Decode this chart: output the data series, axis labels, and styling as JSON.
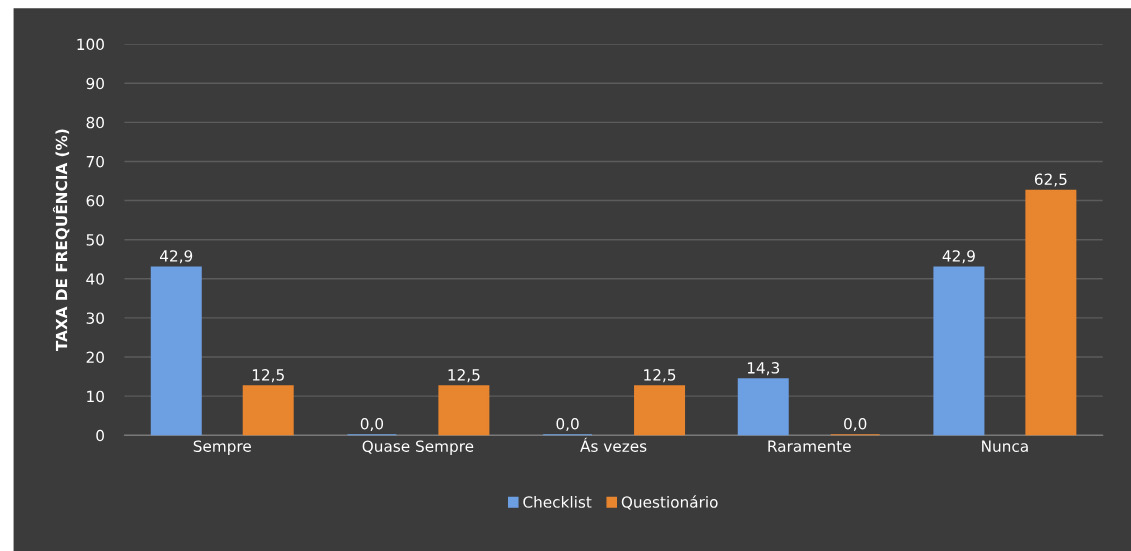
{
  "chart_data": {
    "type": "bar",
    "ylabel": "TAXA DE FREQUÊNCIA (%)",
    "categories": [
      "Sempre",
      "Quase Sempre",
      "Ás vezes",
      "Raramente",
      "Nunca"
    ],
    "series": [
      {
        "name": "Checklist",
        "color": "#6d9fe3",
        "values": [
          42.9,
          0.0,
          0.0,
          14.3,
          42.9
        ],
        "value_labels": [
          "42,9",
          "0,0",
          "0,0",
          "14,3",
          "42,9"
        ]
      },
      {
        "name": "Questionário",
        "color": "#e8852f",
        "values": [
          12.5,
          12.5,
          12.5,
          0.0,
          62.5
        ],
        "value_labels": [
          "12,5",
          "12,5",
          "12,5",
          "0,0",
          "62,5"
        ]
      }
    ],
    "ylim": [
      0,
      100
    ],
    "yticks": [
      0,
      10,
      20,
      30,
      40,
      50,
      60,
      70,
      80,
      90,
      100
    ],
    "grid": "y",
    "legend": "bottom"
  }
}
